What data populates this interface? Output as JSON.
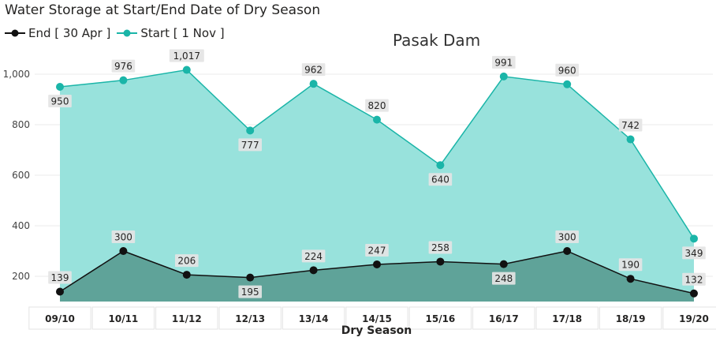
{
  "title": "Water Storage at Start/End Date of Dry Season",
  "legend": {
    "end_label": "End [ 30 Apr ]",
    "start_label": "Start [ 1 Nov ]"
  },
  "chart_data": {
    "type": "area",
    "subtitle": "Pasak Dam",
    "xlabel": "Dry  Season",
    "ylabel": "",
    "ylim": [
      100,
      1100
    ],
    "yticks": [
      200,
      400,
      600,
      800,
      1000
    ],
    "ytick_labels": [
      "200",
      "400",
      "600",
      "800",
      "1,000"
    ],
    "grid": true,
    "legend_position": "top-left",
    "categories": [
      "09/10",
      "10/11",
      "11/12",
      "12/13",
      "13/14",
      "14/15",
      "15/16",
      "16/17",
      "17/18",
      "18/19",
      "19/20"
    ],
    "series": [
      {
        "name": "Start [ 1 Nov ]",
        "color": "#1AB5A8",
        "fill": "#98E2DC",
        "values": [
          950,
          976,
          1017,
          777,
          962,
          820,
          640,
          991,
          960,
          742,
          349
        ],
        "labels": [
          "950",
          "976",
          "1,017",
          "777",
          "962",
          "820",
          "640",
          "991",
          "960",
          "742",
          "349"
        ]
      },
      {
        "name": "End [ 30 Apr ]",
        "color": "#111111",
        "fill": "#5FA399",
        "values": [
          139,
          300,
          206,
          195,
          224,
          247,
          258,
          248,
          300,
          190,
          132
        ],
        "labels": [
          "139",
          "300",
          "206",
          "195",
          "224",
          "247",
          "258",
          "248",
          "300",
          "190",
          "132"
        ]
      }
    ]
  }
}
